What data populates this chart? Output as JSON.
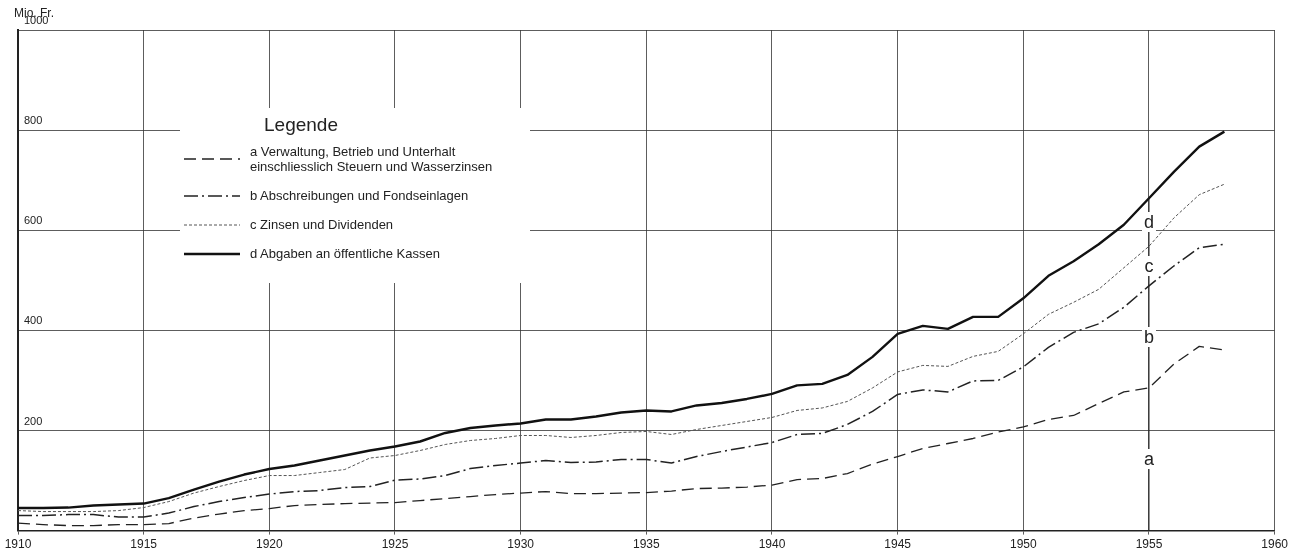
{
  "chart_data": {
    "type": "line",
    "ylabel": "Mio. Fr.",
    "legend_title": "Legende",
    "x": [
      1910,
      1911,
      1912,
      1913,
      1914,
      1915,
      1916,
      1917,
      1918,
      1919,
      1920,
      1921,
      1922,
      1923,
      1924,
      1925,
      1926,
      1927,
      1928,
      1929,
      1930,
      1931,
      1932,
      1933,
      1934,
      1935,
      1936,
      1937,
      1938,
      1939,
      1940,
      1941,
      1942,
      1943,
      1944,
      1945,
      1946,
      1947,
      1948,
      1949,
      1950,
      1951,
      1952,
      1953,
      1954,
      1955,
      1956,
      1957,
      1958
    ],
    "series": [
      {
        "name": "a Verwaltung, Betrieb und Unterhalt einschliesslich Steuern und Wasserzinsen",
        "color": "#222222",
        "line_style": "dashed",
        "values": [
          15,
          12,
          10,
          10,
          12,
          12,
          14,
          25,
          33,
          40,
          44,
          50,
          52,
          54,
          55,
          56,
          60,
          64,
          68,
          72,
          75,
          78,
          74,
          74,
          75,
          76,
          79,
          84,
          85,
          87,
          91,
          102,
          104,
          114,
          133,
          148,
          164,
          174,
          184,
          197,
          207,
          222,
          230,
          254,
          277,
          285,
          333,
          368,
          361
        ]
      },
      {
        "name": "b Abschreibungen und Fondseinlagen",
        "color": "#222222",
        "line_style": "dashdot",
        "values": [
          30,
          30,
          32,
          32,
          27,
          27,
          35,
          48,
          58,
          66,
          73,
          78,
          80,
          86,
          88,
          101,
          103,
          110,
          124,
          130,
          135,
          140,
          136,
          137,
          142,
          142,
          135,
          148,
          158,
          167,
          176,
          192,
          194,
          212,
          238,
          272,
          281,
          277,
          299,
          300,
          327,
          366,
          396,
          413,
          446,
          489,
          529,
          565,
          572
        ]
      },
      {
        "name": "c Zinsen und Dividenden",
        "color": "#555555",
        "line_style": "dotted",
        "values": [
          40,
          38,
          38,
          38,
          40,
          46,
          58,
          75,
          88,
          100,
          110,
          110,
          116,
          122,
          145,
          150,
          160,
          172,
          180,
          184,
          190,
          190,
          186,
          190,
          196,
          198,
          192,
          202,
          210,
          218,
          226,
          240,
          245,
          258,
          285,
          317,
          330,
          328,
          348,
          358,
          393,
          432,
          456,
          482,
          525,
          568,
          625,
          671,
          692
        ]
      },
      {
        "name": "d Abgaben an öffentliche Kassen",
        "color": "#111111",
        "line_style": "solid",
        "values": [
          45,
          45,
          46,
          50,
          52,
          54,
          65,
          82,
          98,
          112,
          123,
          130,
          140,
          150,
          160,
          168,
          178,
          195,
          205,
          210,
          214,
          222,
          222,
          228,
          236,
          240,
          238,
          250,
          255,
          263,
          273,
          290,
          293,
          311,
          347,
          393,
          409,
          403,
          427,
          427,
          464,
          509,
          538,
          572,
          611,
          664,
          717,
          767,
          797
        ]
      }
    ],
    "xlim": [
      1910,
      1960
    ],
    "xticks": [
      1910,
      1915,
      1920,
      1925,
      1930,
      1935,
      1940,
      1945,
      1950,
      1955,
      1960
    ],
    "ylim": [
      0,
      1000
    ],
    "yticks": [
      {
        "value": 0,
        "label": null
      },
      200,
      400,
      600,
      800,
      1000
    ],
    "grid": true,
    "legend": "top left",
    "marker": "none",
    "annotations": [
      "d",
      "c",
      "b",
      "a"
    ]
  }
}
